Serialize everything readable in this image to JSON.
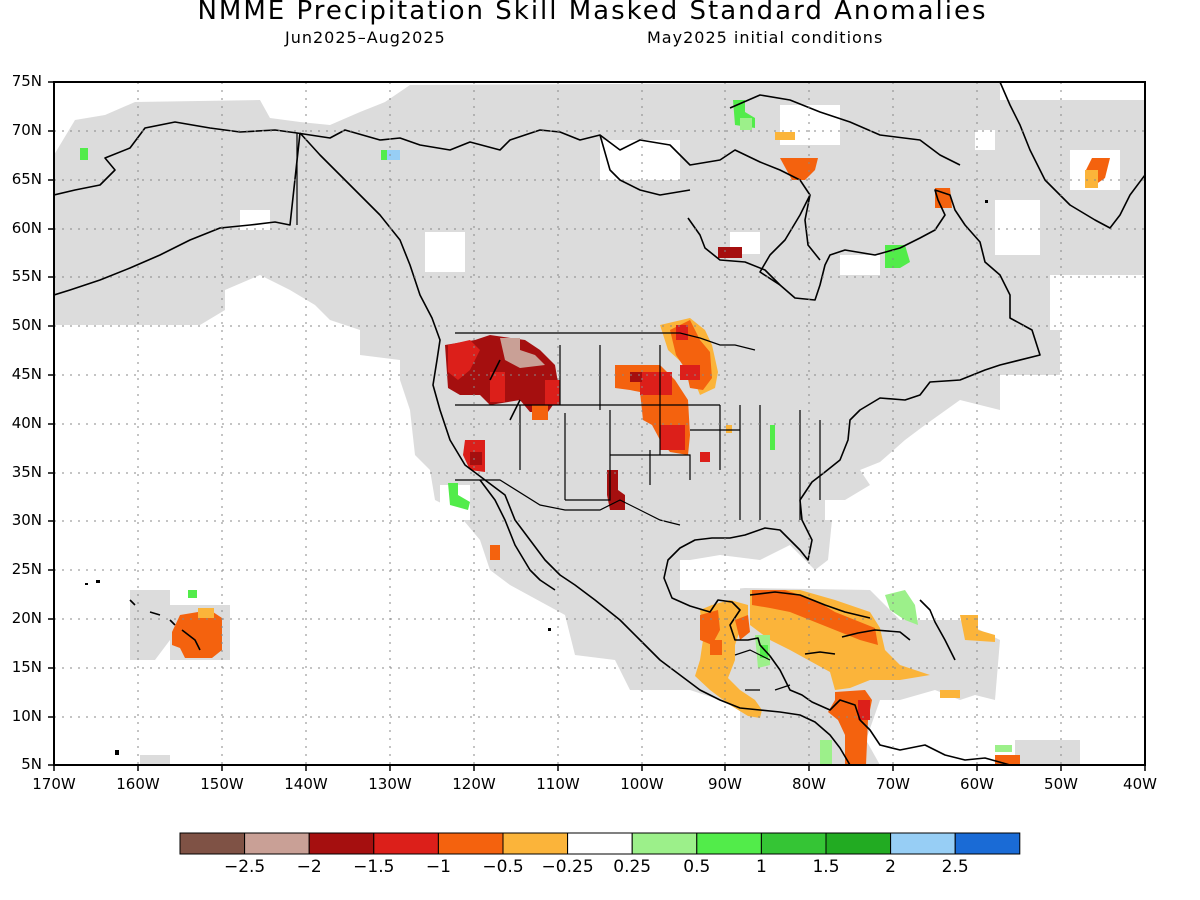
{
  "title": "NMME Precipitation Skill Masked Standard Anomalies",
  "subtitle_left": "Jun2025–Aug2025",
  "subtitle_right": "May2025 initial conditions",
  "lat_labels": [
    "75N",
    "70N",
    "65N",
    "60N",
    "55N",
    "50N",
    "45N",
    "40N",
    "35N",
    "30N",
    "25N",
    "20N",
    "15N",
    "10N",
    "5N"
  ],
  "lon_labels": [
    "170W",
    "160W",
    "150W",
    "140W",
    "130W",
    "120W",
    "110W",
    "100W",
    "90W",
    "80W",
    "70W",
    "60W",
    "50W",
    "40W"
  ],
  "legend": {
    "colors": [
      "#7f5245",
      "#c9a096",
      "#a50f0f",
      "#dc1f1a",
      "#f4620e",
      "#fbb43a",
      "#ffffff",
      "#9cf08a",
      "#52ec4a",
      "#35c535",
      "#22ab22",
      "#97cef5",
      "#1a6bd6"
    ],
    "labels": [
      "−2.5",
      "−2",
      "−1.5",
      "−1",
      "−0.5",
      "−0.25",
      "0.25",
      "0.5",
      "1",
      "1.5",
      "2",
      "2.5"
    ]
  },
  "colors": {
    "skill_mask": "#dcdcdc",
    "coast": "#000000"
  }
}
